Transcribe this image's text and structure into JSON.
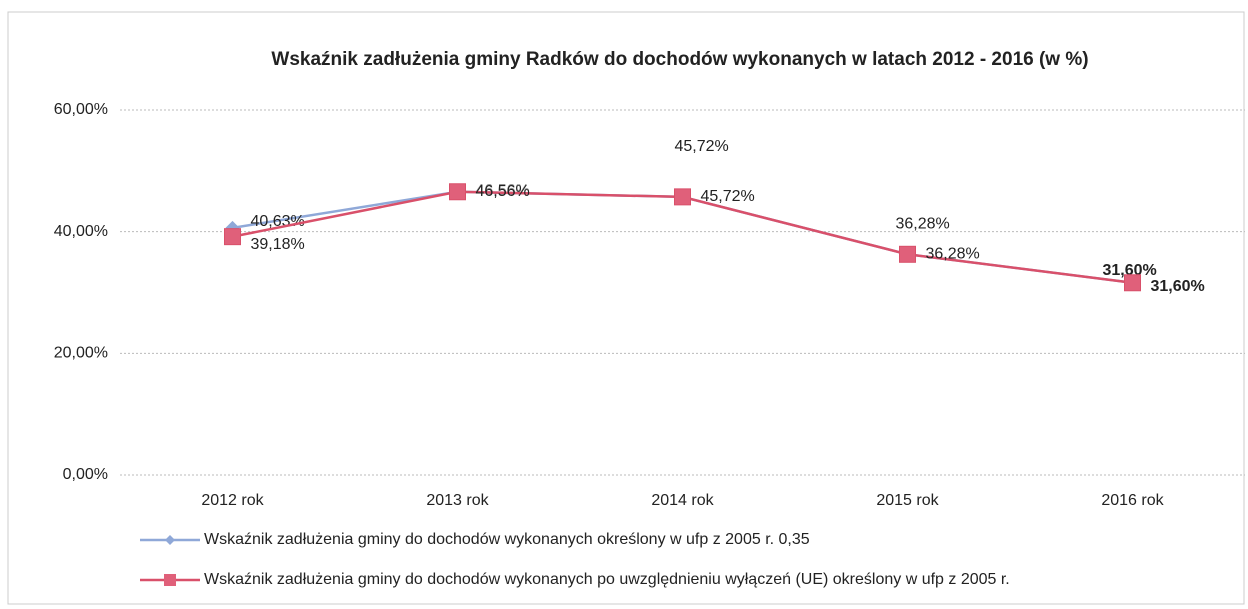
{
  "chart_data": {
    "type": "line",
    "title": "Wskaźnik zadłużenia gminy Radków do dochodów wykonanych w latach 2012 - 2016 (w %)",
    "categories": [
      "2012 rok",
      "2013 rok",
      "2014 rok",
      "2015 rok",
      "2016 rok"
    ],
    "series": [
      {
        "name": "Wskaźnik zadłużenia gminy do dochodów wykonanych określony w ufp z 2005 r. 0,35",
        "color": "#8fa8d8",
        "marker": "diamond",
        "values": [
          40.63,
          46.56,
          45.72,
          36.28,
          31.6
        ],
        "value_labels": [
          "40,63%",
          "46,56%",
          "45,72%",
          "36,28%",
          "31,60%"
        ]
      },
      {
        "name": "Wskaźnik zadłużenia gminy do dochodów wykonanych po uwzględnieniu wyłączeń (UE) określony w ufp z 2005 r.",
        "color": "#d9506a",
        "marker": "square",
        "values": [
          39.18,
          46.56,
          45.72,
          36.28,
          31.6
        ],
        "value_labels": [
          "39,18%",
          "46,56%",
          "45,72%",
          "36,28%",
          "31,60%"
        ]
      }
    ],
    "ylim": [
      0,
      60
    ],
    "yticks": [
      {
        "value": 0,
        "label": "0,00%"
      },
      {
        "value": 20,
        "label": "20,00%"
      },
      {
        "value": 40,
        "label": "40,00%"
      },
      {
        "value": 60,
        "label": "60,00%"
      }
    ],
    "grid": true,
    "legend": "bottom"
  }
}
